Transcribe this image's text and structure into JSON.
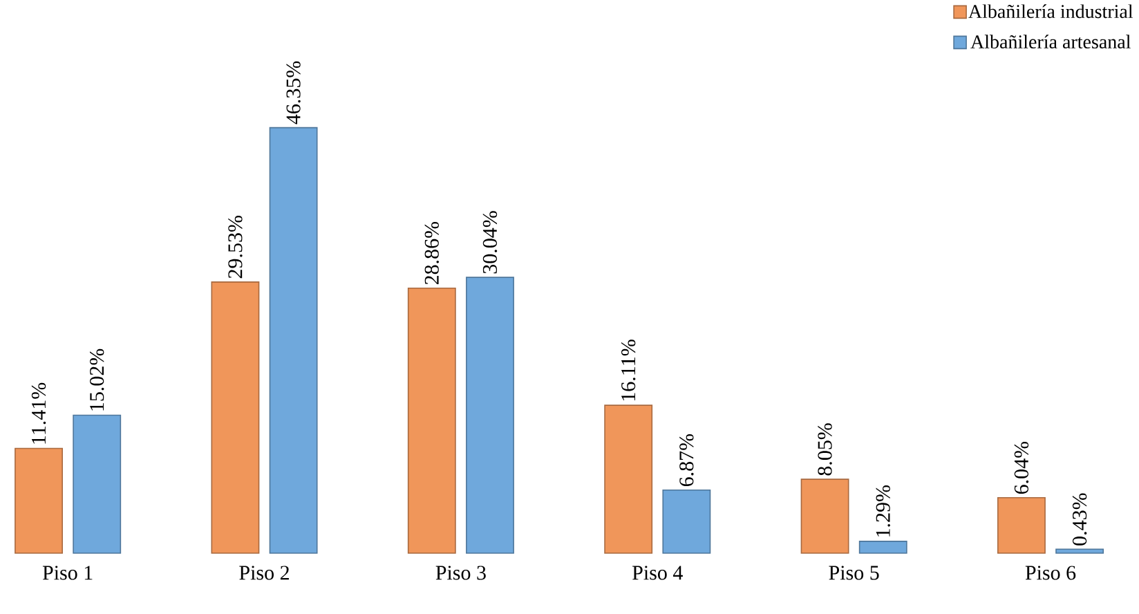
{
  "chart_data": {
    "type": "bar",
    "categories": [
      "Piso 1",
      "Piso 2",
      "Piso 3",
      "Piso 4",
      "Piso 5",
      "Piso 6"
    ],
    "series": [
      {
        "name": "Albañilería industrial",
        "color": "#f0965a",
        "values": [
          11.41,
          29.53,
          28.86,
          16.11,
          8.05,
          6.04
        ],
        "value_labels": [
          "11.41%",
          "29.53%",
          "28.86%",
          "16.11%",
          "8.05%",
          "6.04%"
        ]
      },
      {
        "name": "Albañilería artesanal",
        "color": "#6fa8dc",
        "values": [
          15.02,
          46.35,
          30.04,
          6.87,
          1.29,
          0.43
        ],
        "value_labels": [
          "15.02%",
          "46.35%",
          "30.04%",
          "6.87%",
          "1.29%",
          "0.43%"
        ]
      }
    ],
    "legend": "top right"
  }
}
